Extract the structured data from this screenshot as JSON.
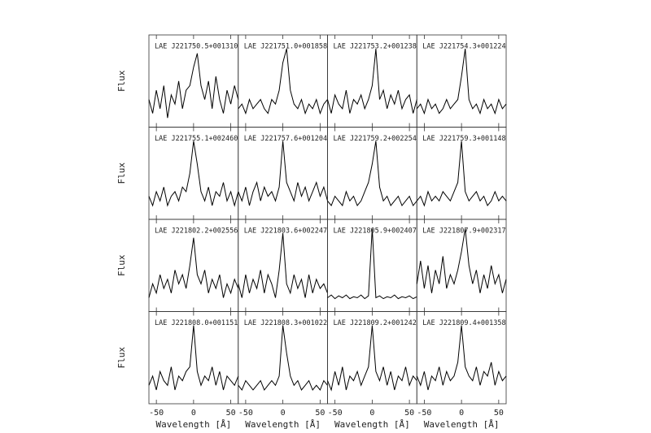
{
  "chart_data": [
    {
      "type": "line",
      "title": "LAE J221750.5+001310",
      "ylabel": "Flux",
      "x": [
        -60,
        -55,
        -50,
        -45,
        -40,
        -35,
        -30,
        -25,
        -20,
        -15,
        -10,
        -5,
        0,
        5,
        10,
        15,
        20,
        25,
        30,
        35,
        40,
        45,
        50,
        55,
        60
      ],
      "values": [
        0.3,
        0.15,
        0.4,
        0.2,
        0.45,
        0.1,
        0.35,
        0.25,
        0.5,
        0.2,
        0.4,
        0.45,
        0.65,
        0.8,
        0.45,
        0.3,
        0.5,
        0.2,
        0.55,
        0.3,
        0.15,
        0.4,
        0.25,
        0.45,
        0.3
      ],
      "xlim": [
        -60,
        60
      ],
      "xticks": [
        -50,
        0,
        50
      ],
      "ylim": [
        0,
        1
      ],
      "color": "#000000"
    },
    {
      "type": "line",
      "title": "LAE J221751.0+001858",
      "x": [
        -60,
        -55,
        -50,
        -45,
        -40,
        -35,
        -30,
        -25,
        -20,
        -15,
        -10,
        -5,
        0,
        5,
        10,
        15,
        20,
        25,
        30,
        35,
        40,
        45,
        50,
        55,
        60
      ],
      "values": [
        0.2,
        0.25,
        0.15,
        0.3,
        0.2,
        0.25,
        0.3,
        0.2,
        0.15,
        0.3,
        0.25,
        0.4,
        0.7,
        0.85,
        0.4,
        0.25,
        0.2,
        0.3,
        0.15,
        0.25,
        0.2,
        0.3,
        0.15,
        0.25,
        0.3
      ],
      "xlim": [
        -60,
        60
      ],
      "xticks": [
        -50,
        0,
        50
      ],
      "ylim": [
        0,
        1
      ],
      "color": "#000000"
    },
    {
      "type": "line",
      "title": "LAE J221753.2+001238",
      "x": [
        -60,
        -55,
        -50,
        -45,
        -40,
        -35,
        -30,
        -25,
        -20,
        -15,
        -10,
        -5,
        0,
        5,
        10,
        15,
        20,
        25,
        30,
        35,
        40,
        45,
        50,
        55,
        60
      ],
      "values": [
        0.3,
        0.15,
        0.35,
        0.25,
        0.2,
        0.4,
        0.15,
        0.3,
        0.25,
        0.35,
        0.2,
        0.3,
        0.45,
        0.85,
        0.3,
        0.4,
        0.2,
        0.35,
        0.25,
        0.4,
        0.2,
        0.3,
        0.35,
        0.15,
        0.3
      ],
      "xlim": [
        -60,
        60
      ],
      "xticks": [
        -50,
        0,
        50
      ],
      "ylim": [
        0,
        1
      ],
      "color": "#000000"
    },
    {
      "type": "line",
      "title": "LAE J221754.3+001224",
      "x": [
        -60,
        -55,
        -50,
        -45,
        -40,
        -35,
        -30,
        -25,
        -20,
        -15,
        -10,
        -5,
        0,
        5,
        10,
        15,
        20,
        25,
        30,
        35,
        40,
        45,
        50,
        55,
        60
      ],
      "values": [
        0.2,
        0.25,
        0.15,
        0.3,
        0.2,
        0.25,
        0.15,
        0.2,
        0.3,
        0.2,
        0.25,
        0.3,
        0.55,
        0.85,
        0.3,
        0.2,
        0.25,
        0.15,
        0.3,
        0.2,
        0.25,
        0.15,
        0.3,
        0.2,
        0.25
      ],
      "xlim": [
        -60,
        60
      ],
      "xticks": [
        -50,
        0,
        50
      ],
      "ylim": [
        0,
        1
      ],
      "color": "#000000"
    },
    {
      "type": "line",
      "title": "LAE J221755.1+002460",
      "ylabel": "Flux",
      "x": [
        -60,
        -55,
        -50,
        -45,
        -40,
        -35,
        -30,
        -25,
        -20,
        -15,
        -10,
        -5,
        0,
        5,
        10,
        15,
        20,
        25,
        30,
        35,
        40,
        45,
        50,
        55,
        60
      ],
      "values": [
        0.25,
        0.15,
        0.3,
        0.2,
        0.35,
        0.15,
        0.25,
        0.3,
        0.2,
        0.35,
        0.3,
        0.5,
        0.85,
        0.6,
        0.3,
        0.2,
        0.35,
        0.15,
        0.3,
        0.25,
        0.4,
        0.2,
        0.3,
        0.15,
        0.3
      ],
      "xlim": [
        -60,
        60
      ],
      "xticks": [
        -50,
        0,
        50
      ],
      "ylim": [
        0,
        1
      ],
      "color": "#000000"
    },
    {
      "type": "line",
      "title": "LAE J221757.6+001204",
      "x": [
        -60,
        -55,
        -50,
        -45,
        -40,
        -35,
        -30,
        -25,
        -20,
        -15,
        -10,
        -5,
        0,
        5,
        10,
        15,
        20,
        25,
        30,
        35,
        40,
        45,
        50,
        55,
        60
      ],
      "values": [
        0.3,
        0.2,
        0.35,
        0.15,
        0.3,
        0.4,
        0.2,
        0.35,
        0.25,
        0.3,
        0.2,
        0.35,
        0.85,
        0.4,
        0.3,
        0.2,
        0.4,
        0.25,
        0.35,
        0.2,
        0.3,
        0.4,
        0.25,
        0.35,
        0.2
      ],
      "xlim": [
        -60,
        60
      ],
      "xticks": [
        -50,
        0,
        50
      ],
      "ylim": [
        0,
        1
      ],
      "color": "#000000"
    },
    {
      "type": "line",
      "title": "LAE J221759.2+002254",
      "x": [
        -60,
        -55,
        -50,
        -45,
        -40,
        -35,
        -30,
        -25,
        -20,
        -15,
        -10,
        -5,
        0,
        5,
        10,
        15,
        20,
        25,
        30,
        35,
        40,
        45,
        50,
        55,
        60
      ],
      "values": [
        0.2,
        0.15,
        0.25,
        0.2,
        0.15,
        0.3,
        0.2,
        0.25,
        0.15,
        0.2,
        0.3,
        0.4,
        0.6,
        0.85,
        0.35,
        0.2,
        0.25,
        0.15,
        0.2,
        0.25,
        0.15,
        0.2,
        0.25,
        0.15,
        0.2
      ],
      "xlim": [
        -60,
        60
      ],
      "xticks": [
        -50,
        0,
        50
      ],
      "ylim": [
        0,
        1
      ],
      "color": "#000000"
    },
    {
      "type": "line",
      "title": "LAE J221759.3+001148",
      "x": [
        -60,
        -55,
        -50,
        -45,
        -40,
        -35,
        -30,
        -25,
        -20,
        -15,
        -10,
        -5,
        0,
        5,
        10,
        15,
        20,
        25,
        30,
        35,
        40,
        45,
        50,
        55,
        60
      ],
      "values": [
        0.2,
        0.25,
        0.15,
        0.3,
        0.2,
        0.25,
        0.2,
        0.3,
        0.25,
        0.2,
        0.3,
        0.4,
        0.85,
        0.3,
        0.2,
        0.25,
        0.3,
        0.2,
        0.25,
        0.15,
        0.2,
        0.3,
        0.2,
        0.25,
        0.2
      ],
      "xlim": [
        -60,
        60
      ],
      "xticks": [
        -50,
        0,
        50
      ],
      "ylim": [
        0,
        1
      ],
      "color": "#000000"
    },
    {
      "type": "line",
      "title": "LAE J221802.2+002556",
      "ylabel": "Flux",
      "x": [
        -60,
        -55,
        -50,
        -45,
        -40,
        -35,
        -30,
        -25,
        -20,
        -15,
        -10,
        -5,
        0,
        5,
        10,
        15,
        20,
        25,
        30,
        35,
        40,
        45,
        50,
        55,
        60
      ],
      "values": [
        0.15,
        0.3,
        0.2,
        0.4,
        0.25,
        0.35,
        0.2,
        0.45,
        0.3,
        0.4,
        0.25,
        0.5,
        0.8,
        0.4,
        0.3,
        0.45,
        0.2,
        0.35,
        0.25,
        0.4,
        0.15,
        0.3,
        0.2,
        0.35,
        0.25
      ],
      "xlim": [
        -60,
        60
      ],
      "xticks": [
        -50,
        0,
        50
      ],
      "ylim": [
        0,
        1
      ],
      "color": "#000000"
    },
    {
      "type": "line",
      "title": "LAE J221803.6+002247",
      "x": [
        -60,
        -55,
        -50,
        -45,
        -40,
        -35,
        -30,
        -25,
        -20,
        -15,
        -10,
        -5,
        0,
        5,
        10,
        15,
        20,
        25,
        30,
        35,
        40,
        45,
        50,
        55,
        60
      ],
      "values": [
        0.3,
        0.15,
        0.4,
        0.2,
        0.35,
        0.25,
        0.45,
        0.2,
        0.4,
        0.3,
        0.15,
        0.45,
        0.85,
        0.3,
        0.2,
        0.4,
        0.25,
        0.35,
        0.15,
        0.4,
        0.2,
        0.35,
        0.25,
        0.3,
        0.2
      ],
      "xlim": [
        -60,
        60
      ],
      "xticks": [
        -50,
        0,
        50
      ],
      "ylim": [
        0,
        1
      ],
      "color": "#000000"
    },
    {
      "type": "line",
      "title": "LAE J221805.9+002407",
      "x": [
        -60,
        -55,
        -50,
        -45,
        -40,
        -35,
        -30,
        -25,
        -20,
        -15,
        -10,
        -5,
        0,
        5,
        10,
        15,
        20,
        25,
        30,
        35,
        40,
        45,
        50,
        55,
        60
      ],
      "values": [
        0.15,
        0.18,
        0.14,
        0.17,
        0.15,
        0.18,
        0.14,
        0.16,
        0.15,
        0.18,
        0.14,
        0.17,
        0.9,
        0.15,
        0.17,
        0.14,
        0.16,
        0.15,
        0.18,
        0.14,
        0.16,
        0.15,
        0.17,
        0.14,
        0.16
      ],
      "xlim": [
        -60,
        60
      ],
      "xticks": [
        -50,
        0,
        50
      ],
      "ylim": [
        0,
        1
      ],
      "color": "#000000"
    },
    {
      "type": "line",
      "title": "LAE J221807.9+002317",
      "x": [
        -60,
        -55,
        -50,
        -45,
        -40,
        -35,
        -30,
        -25,
        -20,
        -15,
        -10,
        -5,
        0,
        5,
        10,
        15,
        20,
        25,
        30,
        35,
        40,
        45,
        50,
        55,
        60
      ],
      "values": [
        0.3,
        0.55,
        0.25,
        0.5,
        0.2,
        0.45,
        0.3,
        0.6,
        0.25,
        0.4,
        0.3,
        0.45,
        0.65,
        0.9,
        0.5,
        0.3,
        0.45,
        0.2,
        0.4,
        0.25,
        0.5,
        0.3,
        0.4,
        0.2,
        0.35
      ],
      "xlim": [
        -60,
        60
      ],
      "xticks": [
        -50,
        0,
        50
      ],
      "ylim": [
        0,
        1
      ],
      "color": "#000000"
    },
    {
      "type": "line",
      "title": "LAE J221808.0+001151",
      "ylabel": "Flux",
      "xlabel": "Wavelength [Å]",
      "x": [
        -60,
        -55,
        -50,
        -45,
        -40,
        -35,
        -30,
        -25,
        -20,
        -15,
        -10,
        -5,
        0,
        5,
        10,
        15,
        20,
        25,
        30,
        35,
        40,
        45,
        50,
        55,
        60
      ],
      "values": [
        0.2,
        0.3,
        0.15,
        0.35,
        0.25,
        0.2,
        0.4,
        0.15,
        0.3,
        0.25,
        0.35,
        0.4,
        0.85,
        0.35,
        0.2,
        0.3,
        0.25,
        0.4,
        0.2,
        0.35,
        0.15,
        0.3,
        0.25,
        0.2,
        0.3
      ],
      "xlim": [
        -60,
        60
      ],
      "xticks": [
        -50,
        0,
        50
      ],
      "ylim": [
        0,
        1
      ],
      "color": "#000000"
    },
    {
      "type": "line",
      "title": "LAE J221808.3+001022",
      "xlabel": "Wavelength [Å]",
      "x": [
        -60,
        -55,
        -50,
        -45,
        -40,
        -35,
        -30,
        -25,
        -20,
        -15,
        -10,
        -5,
        0,
        5,
        10,
        15,
        20,
        25,
        30,
        35,
        40,
        45,
        50,
        55,
        60
      ],
      "values": [
        0.2,
        0.15,
        0.25,
        0.2,
        0.15,
        0.2,
        0.25,
        0.15,
        0.2,
        0.25,
        0.2,
        0.3,
        0.85,
        0.55,
        0.3,
        0.2,
        0.25,
        0.15,
        0.2,
        0.25,
        0.15,
        0.2,
        0.15,
        0.25,
        0.2
      ],
      "xlim": [
        -60,
        60
      ],
      "xticks": [
        -50,
        0,
        50
      ],
      "ylim": [
        0,
        1
      ],
      "color": "#000000"
    },
    {
      "type": "line",
      "title": "LAE J221809.2+001242",
      "xlabel": "Wavelength [Å]",
      "x": [
        -60,
        -55,
        -50,
        -45,
        -40,
        -35,
        -30,
        -25,
        -20,
        -15,
        -10,
        -5,
        0,
        5,
        10,
        15,
        20,
        25,
        30,
        35,
        40,
        45,
        50,
        55,
        60
      ],
      "values": [
        0.25,
        0.15,
        0.35,
        0.2,
        0.4,
        0.15,
        0.3,
        0.25,
        0.35,
        0.2,
        0.3,
        0.4,
        0.85,
        0.35,
        0.25,
        0.4,
        0.2,
        0.35,
        0.15,
        0.3,
        0.25,
        0.4,
        0.2,
        0.3,
        0.25
      ],
      "xlim": [
        -60,
        60
      ],
      "xticks": [
        -50,
        0,
        50
      ],
      "ylim": [
        0,
        1
      ],
      "color": "#000000"
    },
    {
      "type": "line",
      "title": "LAE J221809.4+001358",
      "xlabel": "Wavelength [Å]",
      "x": [
        -60,
        -55,
        -50,
        -45,
        -40,
        -35,
        -30,
        -25,
        -20,
        -15,
        -10,
        -5,
        0,
        5,
        10,
        15,
        20,
        25,
        30,
        35,
        40,
        45,
        50,
        55,
        60
      ],
      "values": [
        0.3,
        0.2,
        0.35,
        0.15,
        0.3,
        0.25,
        0.4,
        0.2,
        0.35,
        0.25,
        0.3,
        0.45,
        0.85,
        0.4,
        0.3,
        0.25,
        0.4,
        0.2,
        0.35,
        0.3,
        0.45,
        0.2,
        0.35,
        0.25,
        0.3
      ],
      "xlim": [
        -60,
        60
      ],
      "xticks": [
        -50,
        0,
        50
      ],
      "ylim": [
        0,
        1
      ],
      "color": "#000000"
    }
  ]
}
